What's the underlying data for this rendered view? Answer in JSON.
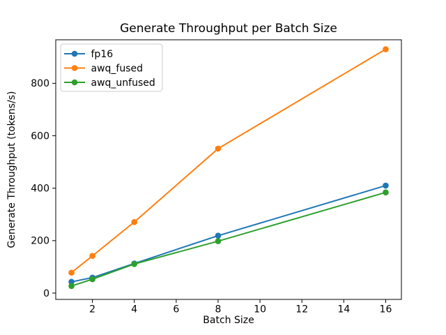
{
  "figure": {
    "title": "Generate Throughput per Batch Size",
    "xlabel": "Batch Size",
    "ylabel": "Generate Throughput (tokens/s)"
  },
  "chart_data": {
    "type": "line",
    "title": "Generate Throughput per Batch Size",
    "xlabel": "Batch Size",
    "ylabel": "Generate Throughput (tokens/s)",
    "x": [
      1,
      2,
      4,
      8,
      16
    ],
    "series": [
      {
        "name": "fp16",
        "color": "#1f77b4",
        "values": [
          43,
          59,
          113,
          219,
          410
        ]
      },
      {
        "name": "awq_fused",
        "color": "#ff7f0e",
        "values": [
          78,
          142,
          271,
          551,
          930
        ]
      },
      {
        "name": "awq_unfused",
        "color": "#2ca02c",
        "values": [
          27,
          53,
          111,
          198,
          384
        ]
      }
    ],
    "xticks": [
      2,
      4,
      6,
      8,
      10,
      12,
      14,
      16
    ],
    "yticks": [
      0,
      200,
      400,
      600,
      800
    ],
    "xlim": [
      0.25,
      16.75
    ],
    "ylim": [
      -24,
      966
    ],
    "legend_position": "upper left",
    "grid": false,
    "marker": "o",
    "spine_color": "#000000",
    "legend_border_color": "#cccccc",
    "background_color": "#ffffff"
  }
}
